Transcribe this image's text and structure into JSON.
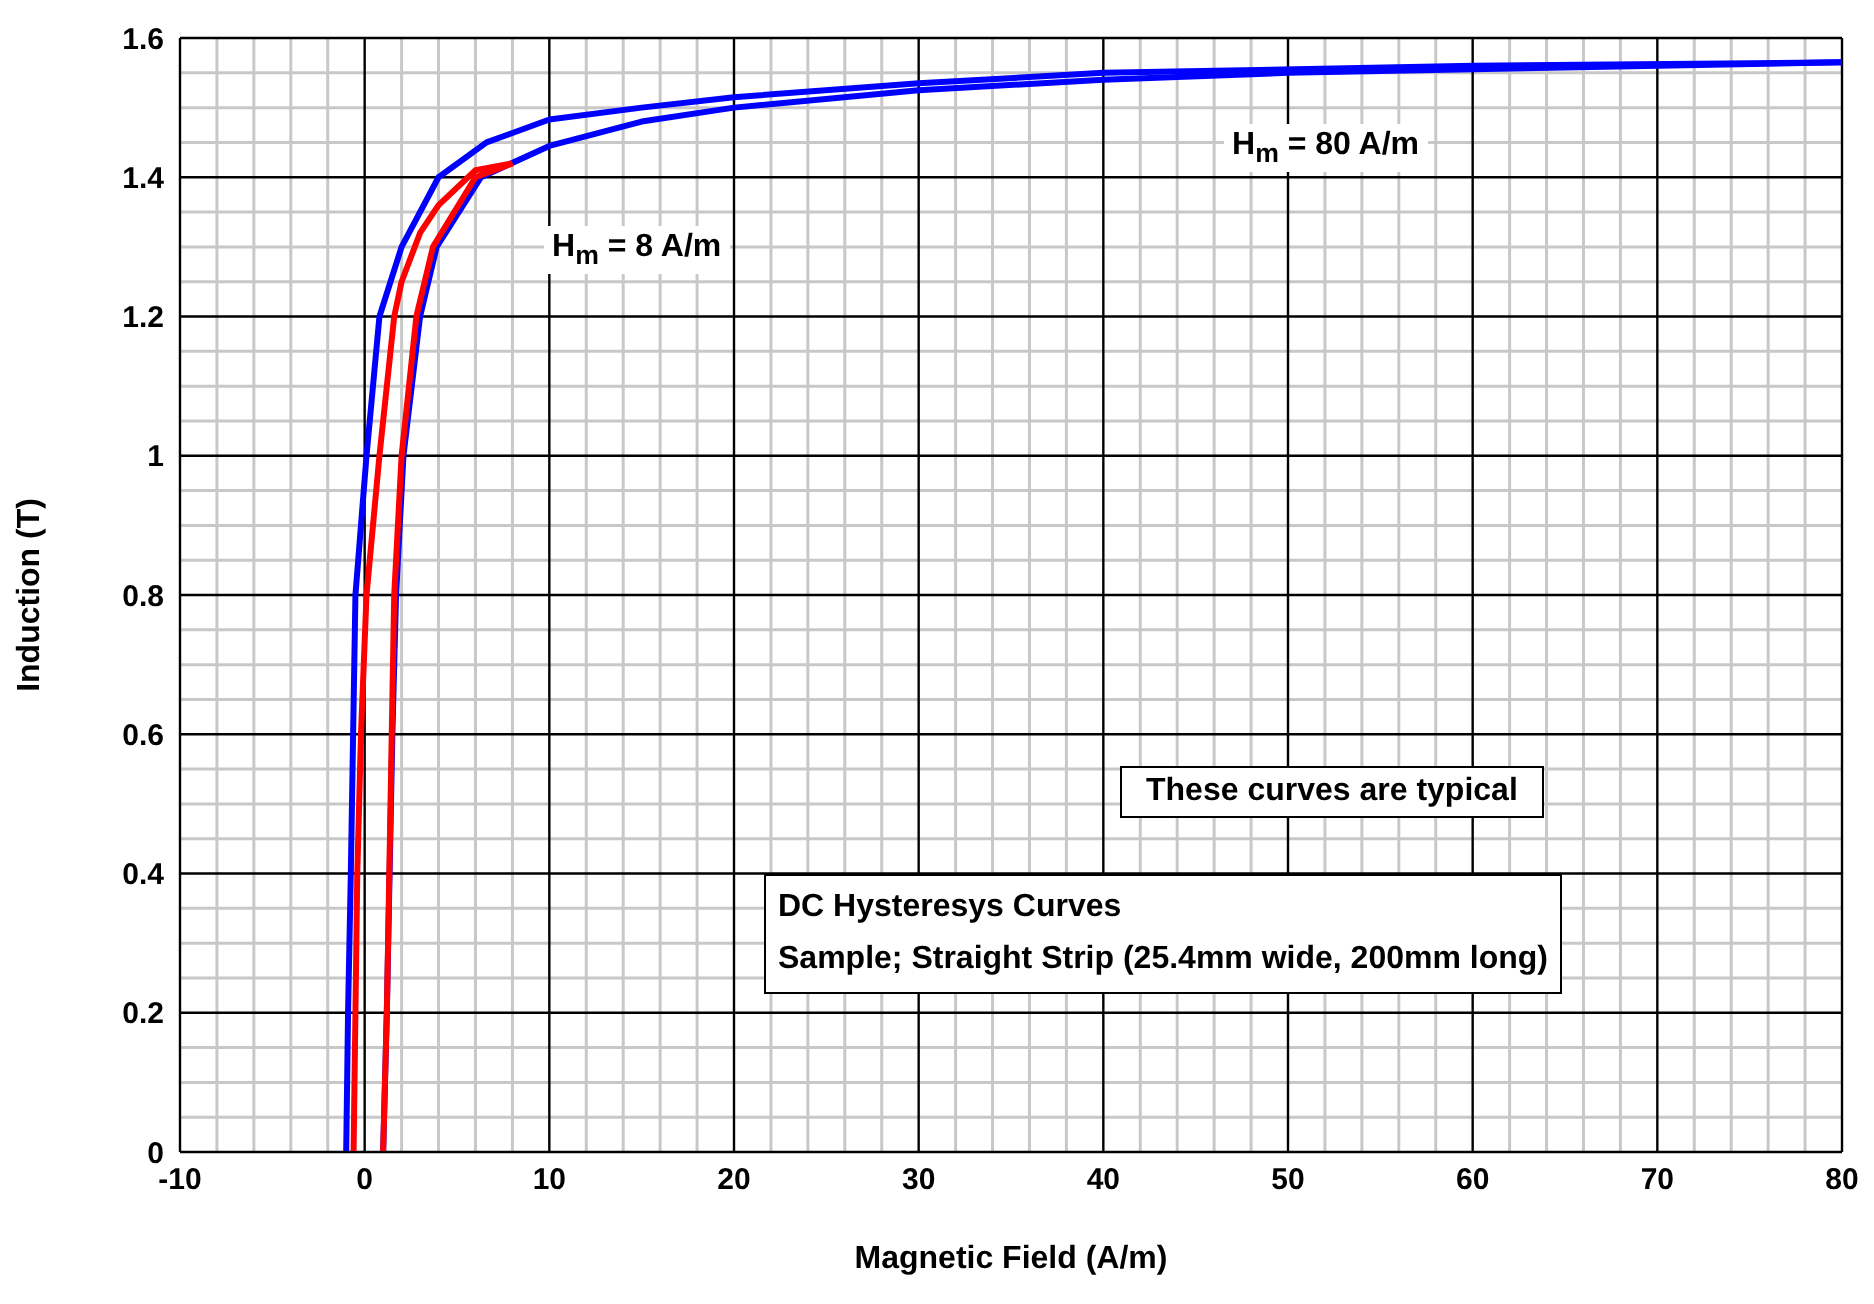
{
  "chart_data": {
    "type": "line",
    "xlabel": "Magnetic Field (A/m)",
    "ylabel": "Induction (T)",
    "xlim": [
      -10,
      80
    ],
    "xticks": [
      -10,
      0,
      10,
      20,
      30,
      40,
      50,
      60,
      70,
      80
    ],
    "ylim": [
      0,
      1.6
    ],
    "yticks": [
      0,
      0.2,
      0.4,
      0.6,
      0.8,
      1,
      1.2,
      1.4,
      1.6
    ],
    "grid": true,
    "marker": "none",
    "line_style": "solid",
    "annotations": [
      "H$_{m}$ = 8 A/m",
      "H$_{m}$ = 80 A/m",
      "These curves are typical",
      "DC Hysteresys Curves",
      "Sample; Straight Strip (25.4mm wide, 200mm long)"
    ],
    "series": [
      {
        "color": "#0000ff",
        "x": [
          80,
          60,
          40,
          30,
          20,
          15,
          10,
          6.6,
          4,
          2,
          0.8,
          0.1,
          -0.5,
          -0.75,
          -0.9,
          -1
        ],
        "values": [
          1.565,
          1.56,
          1.55,
          1.535,
          1.515,
          1.5,
          1.483,
          1.45,
          1.4,
          1.3,
          1.2,
          1,
          0.8,
          0.4,
          0.2,
          0
        ]
      },
      {
        "color": "#0000ff",
        "x": [
          1,
          1.2,
          1.35,
          1.5,
          1.7,
          2.1,
          3,
          3.9,
          6.3,
          10,
          15,
          20,
          30,
          40,
          50,
          60,
          80
        ],
        "values": [
          0,
          0.2,
          0.4,
          0.6,
          0.8,
          1,
          1.2,
          1.3,
          1.4,
          1.445,
          1.48,
          1.5,
          1.525,
          1.54,
          1.55,
          1.555,
          1.565
        ]
      },
      {
        "color": "#ff0000",
        "x": [
          8,
          6,
          4,
          3,
          2,
          1.6,
          0.8,
          0.1,
          -0.2,
          -0.4,
          -0.5,
          -0.6
        ],
        "values": [
          1.42,
          1.41,
          1.36,
          1.32,
          1.25,
          1.2,
          1,
          0.8,
          0.6,
          0.4,
          0.2,
          0
        ]
      },
      {
        "color": "#ff0000",
        "x": [
          1,
          1.2,
          1.4,
          1.6,
          2,
          2.8,
          3.7,
          6,
          8
        ],
        "values": [
          0,
          0.2,
          0.5,
          0.8,
          1,
          1.2,
          1.3,
          1.4,
          1.42
        ]
      }
    ]
  }
}
